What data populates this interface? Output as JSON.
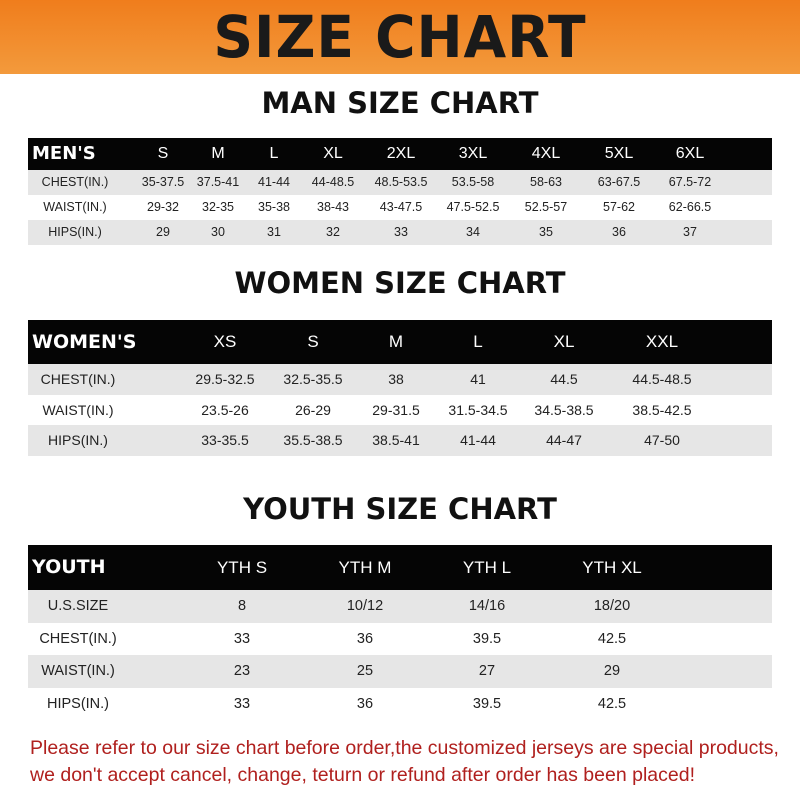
{
  "banner": {
    "title": "SIZE CHART",
    "color": "#f07d1c"
  },
  "men": {
    "title": "MAN SIZE CHART",
    "header": [
      "MEN'S",
      "S",
      "M",
      "L",
      "XL",
      "2XL",
      "3XL",
      "4XL",
      "5XL",
      "6XL"
    ],
    "rows": [
      [
        "CHEST(IN.)",
        "35-37.5",
        "37.5-41",
        "41-44",
        "44-48.5",
        "48.5-53.5",
        "53.5-58",
        "58-63",
        "63-67.5",
        "67.5-72"
      ],
      [
        "WAIST(IN.)",
        "29-32",
        "32-35",
        "35-38",
        "38-43",
        "43-47.5",
        "47.5-52.5",
        "52.5-57",
        "57-62",
        "62-66.5"
      ],
      [
        "HIPS(IN.)",
        "29",
        "30",
        "31",
        "32",
        "33",
        "34",
        "35",
        "36",
        "37"
      ]
    ]
  },
  "women": {
    "title": "WOMEN SIZE CHART",
    "header": [
      "WOMEN'S",
      "XS",
      "S",
      "M",
      "L",
      "XL",
      "XXL"
    ],
    "rows": [
      [
        "CHEST(IN.)",
        "29.5-32.5",
        "32.5-35.5",
        "38",
        "41",
        "44.5",
        "44.5-48.5"
      ],
      [
        "WAIST(IN.)",
        "23.5-26",
        "26-29",
        "29-31.5",
        "31.5-34.5",
        "34.5-38.5",
        "38.5-42.5"
      ],
      [
        "HIPS(IN.)",
        "33-35.5",
        "35.5-38.5",
        "38.5-41",
        "41-44",
        "44-47",
        "47-50"
      ]
    ]
  },
  "youth": {
    "title": "YOUTH SIZE CHART",
    "header": [
      "YOUTH",
      "YTH S",
      "YTH M",
      "YTH L",
      "YTH XL"
    ],
    "rows": [
      [
        "U.S.SIZE",
        "8",
        "10/12",
        "14/16",
        "18/20"
      ],
      [
        "CHEST(IN.)",
        "33",
        "36",
        "39.5",
        "42.5"
      ],
      [
        "WAIST(IN.)",
        "23",
        "25",
        "27",
        "29"
      ],
      [
        "HIPS(IN.)",
        "33",
        "36",
        "39.5",
        "42.5"
      ]
    ]
  },
  "footer": {
    "line1": "Please refer to our size chart before order,the customized jerseys are special products,",
    "line2": "we don't accept cancel, change, teturn or refund after order has been placed!",
    "color": "#b0201e"
  }
}
